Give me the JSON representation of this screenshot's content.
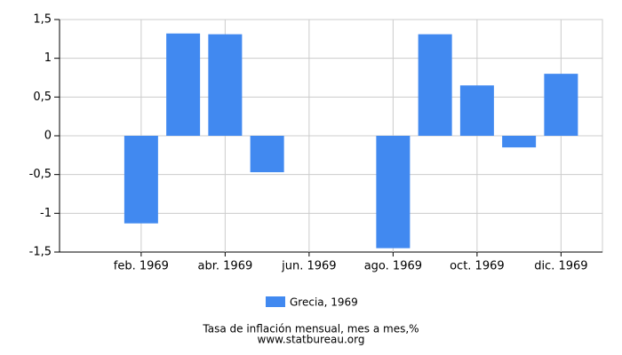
{
  "chart_data": {
    "type": "bar",
    "categories": [
      null,
      "feb. 1969",
      null,
      "abr. 1969",
      null,
      "jun. 1969",
      null,
      "ago. 1969",
      null,
      "oct. 1969",
      null,
      "dic. 1969"
    ],
    "series": [
      {
        "name": "Grecia, 1969",
        "color": "#4189f0",
        "values": [
          null,
          -1.13,
          1.32,
          1.31,
          -0.47,
          0,
          0,
          -1.45,
          1.31,
          0.65,
          -0.15,
          0.8
        ]
      }
    ],
    "ylim": [
      -1.5,
      1.5
    ],
    "yticks": [
      {
        "value": -1.5,
        "label": "-1,5"
      },
      -1,
      {
        "value": -0.5,
        "label": "-0,5"
      },
      0,
      {
        "value": 0.5,
        "label": "0,5"
      },
      1,
      {
        "value": 1.5,
        "label": "1,5"
      }
    ],
    "grid": true,
    "caption": "Tasa de inflación mensual, mes a mes,%",
    "source": "www.statbureau.org"
  }
}
